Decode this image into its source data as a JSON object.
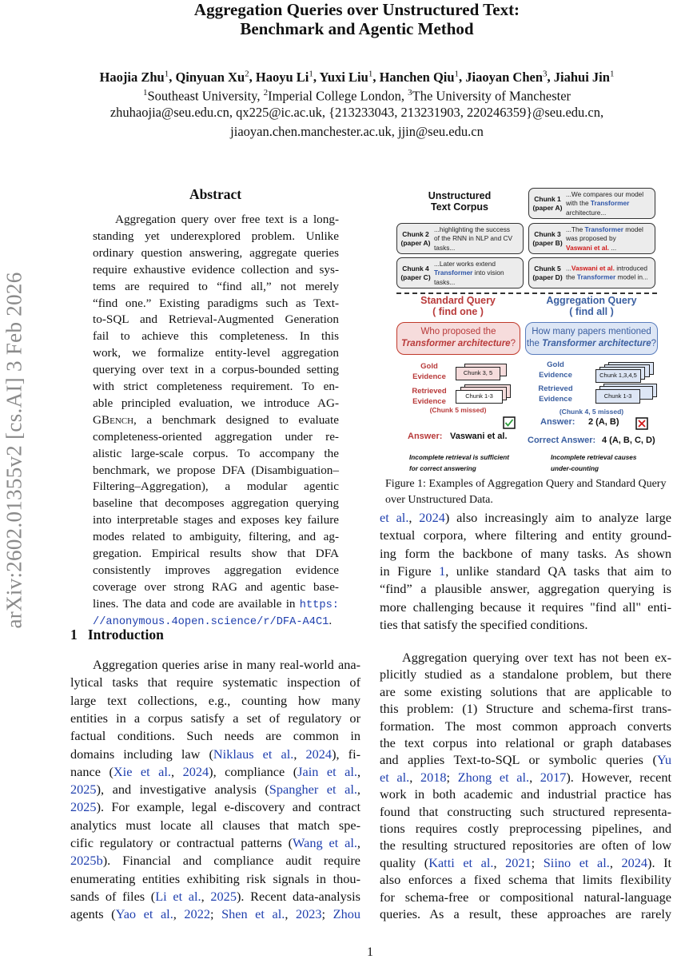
{
  "sidebar_stamp": "arXiv:2602.01355v2  [cs.AI]  3 Feb 2026",
  "title": [
    "Aggregation Queries over Unstructured Text:",
    "Benchmark and Agentic Method"
  ],
  "authors": {
    "names": [
      {
        "name": "Haojia Zhu",
        "aff": "1"
      },
      {
        "name": "Qinyuan Xu",
        "aff": "2"
      },
      {
        "name": "Haoyu Li",
        "aff": "1"
      },
      {
        "name": "Yuxi Liu",
        "aff": "1"
      },
      {
        "name": "Hanchen Qiu",
        "aff": "1"
      },
      {
        "name": "Jiaoyan Chen",
        "aff": "3"
      },
      {
        "name": "Jiahui Jin",
        "aff": "1"
      }
    ],
    "affiliations": [
      {
        "aff": "1",
        "name": "Southeast University"
      },
      {
        "aff": "2",
        "name": "Imperial College London"
      },
      {
        "aff": "3",
        "name": "The University of Manchester"
      }
    ],
    "emails": [
      "zhuhaojia@seu.edu.cn, qx225@ic.ac.uk, {213233043, 213231903, 220246359}@seu.edu.cn,",
      "jiaoyan.chen.manchester.ac.uk, jjin@seu.edu.cn"
    ]
  },
  "abstract": {
    "heading": "Abstract",
    "lines": [
      [
        "Aggregation query over free text is a long-"
      ],
      [
        "standing yet underexplored problem.  Unlike"
      ],
      [
        "ordinary question answering, aggregate queries"
      ],
      [
        "require exhaustive evidence collection and sys-"
      ],
      [
        "tems are required to “find all,” not merely"
      ],
      [
        "“find one.” Existing paradigms such as Text-"
      ],
      [
        "to-SQL and Retrieval-Augmented Generation"
      ],
      [
        "fail to achieve this completeness.  In this"
      ],
      [
        "work, we formalize entity-level aggregation"
      ],
      [
        "querying over text in a corpus-bounded setting"
      ],
      [
        "with strict completeness requirement. To en-"
      ],
      [
        "able principled evaluation, we introduce AG-"
      ],
      [
        "G",
        {
          "t": "Bench",
          "c": "sc"
        },
        ", a benchmark designed to evaluate"
      ],
      [
        "completeness-oriented aggregation under re-"
      ],
      [
        "alistic large-scale corpus. To accompany the"
      ],
      [
        "benchmark, we propose DFA (Disambiguation–"
      ],
      [
        "Filtering–Aggregation), a modular agentic"
      ],
      [
        "baseline that decomposes aggregation querying"
      ],
      [
        "into interpretable stages and exposes key failure"
      ],
      [
        "modes related to ambiguity, filtering, and ag-"
      ],
      [
        "gregation.  Empirical results show that DFA"
      ],
      [
        "consistently improves aggregation evidence"
      ],
      [
        "coverage over strong RAG and agentic base-"
      ],
      [
        "lines. The data and code are available in ",
        {
          "t": "https:",
          "c": "mono"
        }
      ],
      [
        {
          "t": "//anonymous.4open.science/r/DFA-A4C1",
          "c": "mono"
        },
        "."
      ]
    ]
  },
  "intro": {
    "number": "1",
    "heading": "Introduction",
    "lines": [
      [
        "Aggregation queries arise in many real-world ana-"
      ],
      [
        "lytical tasks that require systematic inspection of"
      ],
      [
        "large text collections, e.g., counting how many"
      ],
      [
        "entities in a corpus satisfy a set of regulatory or"
      ],
      [
        "factual conditions.  Such needs are common in"
      ],
      [
        "domains including law (",
        {
          "t": "Niklaus et al.",
          "c": "lnk"
        },
        ", ",
        {
          "t": "2024",
          "c": "lnk"
        },
        "), fi-"
      ],
      [
        "nance (",
        {
          "t": "Xie et al.",
          "c": "lnk"
        },
        ", ",
        {
          "t": "2024",
          "c": "lnk"
        },
        "), compliance (",
        {
          "t": "Jain et al.",
          "c": "lnk"
        },
        ","
      ],
      [
        {
          "t": "2025",
          "c": "lnk"
        },
        "), and investigative analysis (",
        {
          "t": "Spangher et al.",
          "c": "lnk"
        },
        ","
      ],
      [
        {
          "t": "2025",
          "c": "lnk"
        },
        "). For example, legal e-discovery and contract"
      ],
      [
        "analytics must locate all clauses that match spe-"
      ],
      [
        "cific regulatory or contractual patterns (",
        {
          "t": "Wang et al.",
          "c": "lnk"
        },
        ","
      ],
      [
        {
          "t": "2025b",
          "c": "lnk"
        },
        ").  Financial and compliance audit require"
      ],
      [
        "enumerating entities exhibiting risk signals in thou-"
      ],
      [
        "sands of files (",
        {
          "t": "Li et al.",
          "c": "lnk"
        },
        ", ",
        {
          "t": "2025",
          "c": "lnk"
        },
        "). Recent data-analysis"
      ],
      [
        "agents (",
        {
          "t": "Yao et al.",
          "c": "lnk"
        },
        ", ",
        {
          "t": "2022",
          "c": "lnk"
        },
        "; ",
        {
          "t": "Shen et al.",
          "c": "lnk"
        },
        ", ",
        {
          "t": "2023",
          "c": "lnk"
        },
        "; ",
        {
          "t": "Zhou",
          "c": "lnk"
        }
      ]
    ]
  },
  "right_col": {
    "para1": [
      [
        {
          "t": "et al.",
          "c": "lnk"
        },
        ", ",
        {
          "t": "2024",
          "c": "lnk"
        },
        ") also increasingly aim to analyze large"
      ],
      [
        "textual corpora, where filtering and entity ground-"
      ],
      [
        "ing form the backbone of many tasks.  As shown"
      ],
      [
        "in Figure ",
        {
          "t": "1",
          "c": "lnk"
        },
        ", unlike standard QA tasks that aim to"
      ],
      [
        "“find” a plausible answer, aggregation querying is"
      ],
      [
        "more challenging because it requires \"find all\" enti-"
      ],
      [
        "ties that satisfy the specified conditions."
      ]
    ],
    "para2": [
      [
        "Aggregation querying over text has not been ex-"
      ],
      [
        "plicitly studied as a standalone problem, but there"
      ],
      [
        "are some existing solutions that are applicable to"
      ],
      [
        "this problem: (1) Structure and schema-first trans-"
      ],
      [
        "formation. The most common approach converts"
      ],
      [
        "the text corpus into relational or graph databases"
      ],
      [
        "and applies Text-to-SQL or symbolic queries (",
        {
          "t": "Yu",
          "c": "lnk"
        }
      ],
      [
        {
          "t": "et al.",
          "c": "lnk"
        },
        ", ",
        {
          "t": "2018",
          "c": "lnk"
        },
        "; ",
        {
          "t": "Zhong et al.",
          "c": "lnk"
        },
        ", ",
        {
          "t": "2017",
          "c": "lnk"
        },
        "). However, recent"
      ],
      [
        "work in both academic and industrial practice has"
      ],
      [
        "found that constructing such structured representa-"
      ],
      [
        "tions requires costly preprocessing pipelines, and"
      ],
      [
        "the resulting structured repositories are often of low"
      ],
      [
        "quality (",
        {
          "t": "Katti et al.",
          "c": "lnk"
        },
        ", ",
        {
          "t": "2021",
          "c": "lnk"
        },
        "; ",
        {
          "t": "Siino et al.",
          "c": "lnk"
        },
        ", ",
        {
          "t": "2024",
          "c": "lnk"
        },
        ").  It"
      ],
      [
        "also enforces a fixed schema that limits flexibility"
      ],
      [
        "for schema-free or compositional natural-language"
      ],
      [
        "queries.  As a result, these approaches are rarely"
      ]
    ]
  },
  "figure": {
    "caption": [
      "Figure 1: Examples of Aggregation Query and Standard Query",
      "over Unstructured Data."
    ],
    "corpus_title": [
      "Unstructured",
      "Text Corpus"
    ],
    "chunks": {
      "c1": {
        "label": [
          "Chunk 1",
          "(paper A)"
        ],
        "text": [
          [
            "...We compares our model"
          ],
          [
            "with the ",
            {
              "t": "Transformer",
              "c": "kb"
            }
          ],
          [
            "architecture..."
          ]
        ]
      },
      "c2": {
        "label": [
          "Chunk 2",
          "(paper A)"
        ],
        "text": [
          [
            "...highlighting the success"
          ],
          [
            "of the RNN in NLP and CV"
          ],
          [
            "tasks..."
          ]
        ]
      },
      "c3": {
        "label": [
          "Chunk 3",
          "(paper B)"
        ],
        "text": [
          [
            "...The ",
            {
              "t": "Transformer",
              "c": "kb"
            },
            " model"
          ],
          [
            "was proposed by"
          ],
          [
            {
              "t": "Vaswani et al.",
              "c": "kr"
            },
            " ..."
          ]
        ]
      },
      "c4": {
        "label": [
          "Chunk 4",
          "(paper C)"
        ],
        "text": [
          [
            "...Later works extend"
          ],
          [
            {
              "t": "Transformer",
              "c": "kb"
            },
            " into vision"
          ],
          [
            "tasks..."
          ]
        ]
      },
      "c5": {
        "label": [
          "Chunk 5",
          "(paper D)"
        ],
        "text": [
          [
            "...",
            {
              "t": "Vaswani et al.",
              "c": "kr"
            },
            " introduced"
          ],
          [
            "the ",
            {
              "t": "Transformer",
              "c": "kb"
            },
            " model in..."
          ]
        ]
      }
    },
    "standard": {
      "heading": [
        "Standard Query",
        "( find one )"
      ],
      "question": [
        [
          "Who proposed the"
        ],
        [
          {
            "t": "Transformer architecture",
            "c": "it"
          },
          "?"
        ]
      ],
      "gold_label": [
        "Gold",
        "Evidence"
      ],
      "gold_card": "Chunk 3, 5",
      "retrieved_label": [
        "Retrieved",
        "Evidence"
      ],
      "retrieved_card": "Chunk 1-3",
      "missed": "(Chunk 5 missed)",
      "answer_label": "Answer:",
      "answer": "Vaswani et al.",
      "verdict_icon": "check-icon",
      "note": [
        "Incomplete retrieval is sufficient",
        "for correct answering"
      ]
    },
    "aggregation": {
      "heading": [
        "Aggregation Query",
        "( find all )"
      ],
      "question": [
        [
          "How many papers mentioned"
        ],
        [
          "the ",
          {
            "t": "Transformer architecture",
            "c": "it"
          },
          "?"
        ]
      ],
      "gold_label": [
        "Gold",
        "Evidence"
      ],
      "gold_card": "Chunk 1,3,4,5",
      "retrieved_label": [
        "Retrieved",
        "Evidence"
      ],
      "retrieved_card": "Chunk 1-3",
      "missed": "(Chunk 4, 5 missed)",
      "answer_label": "Answer:",
      "answer": "2 (A, B)",
      "verdict_icon": "cross-icon",
      "correct_label": "Correct Answer:",
      "correct_answer": "4 (A, B, C, D)",
      "note": [
        "Incomplete retrieval causes",
        "under-counting"
      ]
    },
    "colors": {
      "standard": "#b83a3a",
      "aggregation": "#3b5fa0",
      "keyword_blue": "#2e55a8",
      "keyword_red": "#d01818",
      "check": "#2a9d3a",
      "cross": "#d01818"
    }
  },
  "page_number": "1"
}
